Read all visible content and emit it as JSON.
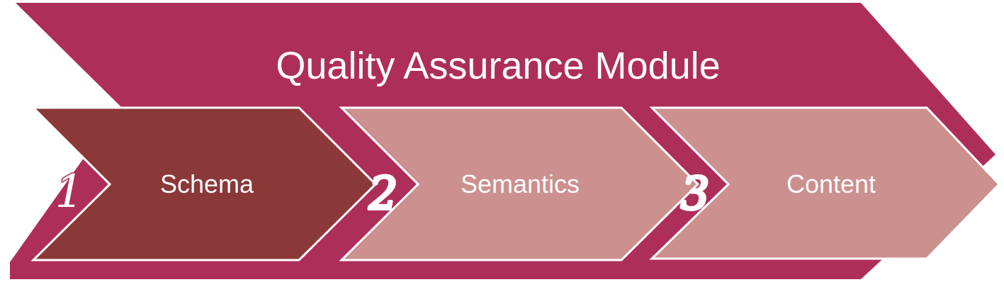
{
  "title": "Quality Assurance Module",
  "colors": {
    "banner": "#ae2e5a",
    "step_active": "#8b3838",
    "step_inactive": "#cc908f",
    "outline": "#ffffff",
    "text": "#ffffff"
  },
  "steps": [
    {
      "number": "1",
      "label": "Schema",
      "active": true
    },
    {
      "number": "2",
      "label": "Semantics",
      "active": false
    },
    {
      "number": "3",
      "label": "Content",
      "active": false
    }
  ]
}
